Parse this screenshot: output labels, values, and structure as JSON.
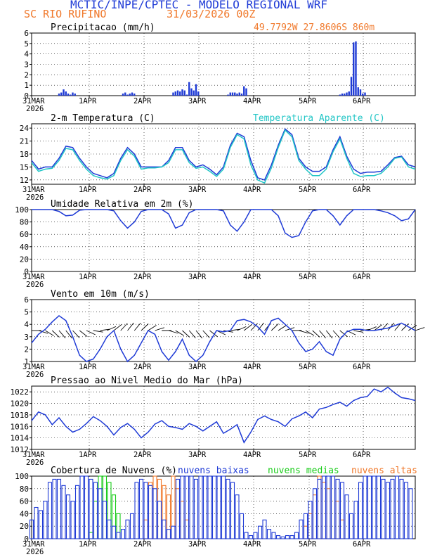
{
  "header": {
    "title": "MCTIC/INPE/CPTEC - MODELO REGIONAL WRF",
    "location": "SC RIO RUFINO",
    "run": "31/03/2026 00Z"
  },
  "colors": {
    "blue": "#1f3bd6",
    "cyan": "#22c6c6",
    "green": "#19cc19",
    "orange": "#f0782a",
    "black": "#000000"
  },
  "chart_data": [
    {
      "type": "bar",
      "title": "Precipitacao (mm/h)",
      "annotation": "49.7792W 27.8606S 860m",
      "x_tick_labels": [
        "31MAR",
        "1APR",
        "2APR",
        "3APR",
        "4APR",
        "5APR",
        "6APR"
      ],
      "x_year": "2026",
      "ylim": [
        0,
        6
      ],
      "yticks": [
        0,
        1,
        2,
        3,
        4,
        5,
        6
      ],
      "x_hours": [
        12,
        13,
        14,
        15,
        16,
        17,
        18,
        19,
        40,
        41,
        42,
        43,
        44,
        45,
        62,
        63,
        64,
        65,
        66,
        67,
        68,
        69,
        70,
        71,
        72,
        73,
        86,
        87,
        88,
        89,
        90,
        91,
        92,
        93,
        94,
        135,
        136,
        137,
        138,
        139,
        140,
        141,
        142,
        143,
        144,
        145,
        146
      ],
      "values": [
        0.2,
        0.3,
        0.6,
        0.4,
        0.2,
        0.1,
        0.3,
        0.2,
        0.2,
        0.3,
        0.1,
        0.2,
        0.3,
        0.2,
        0.3,
        0.4,
        0.5,
        0.4,
        0.6,
        0.5,
        0.1,
        1.3,
        0.7,
        0.5,
        1.1,
        0.4,
        0.1,
        0.3,
        0.3,
        0.3,
        0.2,
        0.3,
        0.2,
        0.9,
        0.7,
        0.1,
        0.2,
        0.2,
        0.3,
        0.4,
        1.8,
        5.1,
        5.2,
        0.8,
        0.6,
        0.2,
        0.3
      ]
    },
    {
      "type": "line",
      "title": "2-m Temperatura (C)",
      "series_label": "Temperatura Aparente (C)",
      "x_tick_labels": [
        "31MAR",
        "1APR",
        "2APR",
        "3APR",
        "4APR",
        "5APR",
        "6APR"
      ],
      "x_year": "2026",
      "ylim": [
        11,
        25
      ],
      "yticks": [
        12,
        15,
        18,
        21,
        24
      ],
      "x_hours": [
        0,
        3,
        6,
        9,
        12,
        15,
        18,
        21,
        24,
        27,
        30,
        33,
        36,
        39,
        42,
        45,
        48,
        51,
        54,
        57,
        60,
        63,
        66,
        69,
        72,
        75,
        78,
        81,
        84,
        87,
        90,
        93,
        96,
        99,
        102,
        105,
        108,
        111,
        114,
        117,
        120,
        123,
        126,
        129,
        132,
        135,
        138,
        141,
        144,
        147,
        150,
        153,
        156,
        159,
        162,
        165,
        168
      ],
      "series": [
        {
          "values": [
            16.5,
            14.5,
            15,
            15,
            17,
            19.8,
            19.5,
            17,
            15,
            13.5,
            13,
            12.5,
            13.5,
            17,
            19.5,
            18,
            15,
            15,
            15,
            15,
            16.5,
            19.5,
            19.5,
            16.5,
            15,
            15.5,
            14.5,
            13.2,
            15,
            20,
            22.8,
            22,
            16.5,
            12.5,
            12,
            15.5,
            20,
            23.8,
            22.5,
            17,
            15,
            14,
            14,
            15,
            19,
            22,
            17.5,
            14.5,
            13.5,
            13.8,
            13.8,
            14,
            15.5,
            17.2,
            17.5,
            15.5,
            15
          ]
        },
        {
          "values": [
            16,
            14,
            14.5,
            14.7,
            16.5,
            19.3,
            19,
            16.5,
            14.5,
            13,
            12.5,
            12.2,
            13,
            16.5,
            19,
            17.5,
            14.5,
            14.8,
            14.8,
            15,
            16,
            19,
            19,
            16,
            14.7,
            15,
            14,
            12.8,
            14.5,
            19.5,
            22.5,
            21.5,
            15.5,
            12,
            11.3,
            14.8,
            19.5,
            23.5,
            22,
            16.5,
            14.5,
            13,
            13,
            14.5,
            18.5,
            21.5,
            17,
            13.5,
            12.8,
            13,
            13,
            13.5,
            15,
            17,
            17.3,
            15,
            14.5
          ]
        }
      ]
    },
    {
      "type": "line",
      "title": "Umidade Relativa em 2m (%)",
      "x_tick_labels": [
        "31MAR",
        "1APR",
        "2APR",
        "3APR",
        "4APR",
        "5APR",
        "6APR"
      ],
      "x_year": "2026",
      "ylim": [
        0,
        100
      ],
      "yticks": [
        0,
        20,
        40,
        60,
        80,
        100
      ],
      "x_hours": [
        0,
        3,
        6,
        9,
        12,
        15,
        18,
        21,
        24,
        27,
        30,
        33,
        36,
        39,
        42,
        45,
        48,
        51,
        54,
        57,
        60,
        63,
        66,
        69,
        72,
        75,
        78,
        81,
        84,
        87,
        90,
        93,
        96,
        99,
        102,
        105,
        108,
        111,
        114,
        117,
        120,
        123,
        126,
        129,
        132,
        135,
        138,
        141,
        144,
        147,
        150,
        153,
        156,
        159,
        162,
        165,
        168
      ],
      "series": [
        {
          "values": [
            100,
            100,
            100,
            100,
            97,
            90,
            91,
            99,
            100,
            100,
            100,
            100,
            98,
            82,
            70,
            80,
            97,
            100,
            100,
            100,
            93,
            70,
            75,
            95,
            100,
            100,
            100,
            100,
            98,
            75,
            65,
            80,
            100,
            100,
            100,
            100,
            90,
            62,
            55,
            58,
            80,
            98,
            100,
            100,
            90,
            75,
            90,
            100,
            100,
            100,
            100,
            98,
            95,
            90,
            82,
            85,
            100
          ]
        }
      ]
    },
    {
      "type": "line",
      "title": "Vento em 10m (m/s)",
      "x_tick_labels": [
        "31MAR",
        "1APR",
        "2APR",
        "3APR",
        "4APR",
        "5APR",
        "6APR"
      ],
      "x_year": "2026",
      "ylim": [
        1,
        6
      ],
      "yticks": [
        1,
        2,
        3,
        4,
        5,
        6
      ],
      "x_hours": [
        0,
        3,
        6,
        9,
        12,
        15,
        18,
        21,
        24,
        27,
        30,
        33,
        36,
        39,
        42,
        45,
        48,
        51,
        54,
        57,
        60,
        63,
        66,
        69,
        72,
        75,
        78,
        81,
        84,
        87,
        90,
        93,
        96,
        99,
        102,
        105,
        108,
        111,
        114,
        117,
        120,
        123,
        126,
        129,
        132,
        135,
        138,
        141,
        144,
        147,
        150,
        153,
        156,
        159,
        162,
        165,
        168
      ],
      "series": [
        {
          "values": [
            2.5,
            3.2,
            3.6,
            4.2,
            4.7,
            4.3,
            3.0,
            1.5,
            1.0,
            1.2,
            2.0,
            3.0,
            3.5,
            2.0,
            1.0,
            1.5,
            2.5,
            3.5,
            3.2,
            1.8,
            1.1,
            1.8,
            2.8,
            1.5,
            1.0,
            1.5,
            2.6,
            3.5,
            3.4,
            3.5,
            4.3,
            4.4,
            4.2,
            3.8,
            3.2,
            4.3,
            4.5,
            4.0,
            3.5,
            2.5,
            1.8,
            2.0,
            2.6,
            1.8,
            1.5,
            2.8,
            3.4,
            3.6,
            3.6,
            3.5,
            3.5,
            3.6,
            3.7,
            3.9,
            4.1,
            3.8,
            3.5
          ]
        }
      ]
    },
    {
      "type": "line",
      "title": "Pressao ao Nivel Medio do Mar (hPa)",
      "x_tick_labels": [
        "31MAR",
        "1APR",
        "2APR",
        "3APR",
        "4APR",
        "5APR",
        "6APR"
      ],
      "x_year": "2026",
      "ylim": [
        1012,
        1023
      ],
      "yticks": [
        1012,
        1014,
        1016,
        1018,
        1020,
        1022
      ],
      "x_hours": [
        0,
        3,
        6,
        9,
        12,
        15,
        18,
        21,
        24,
        27,
        30,
        33,
        36,
        39,
        42,
        45,
        48,
        51,
        54,
        57,
        60,
        63,
        66,
        69,
        72,
        75,
        78,
        81,
        84,
        87,
        90,
        93,
        96,
        99,
        102,
        105,
        108,
        111,
        114,
        117,
        120,
        123,
        126,
        129,
        132,
        135,
        138,
        141,
        144,
        147,
        150,
        153,
        156,
        159,
        162,
        165,
        168
      ],
      "series": [
        {
          "values": [
            1017,
            1018.5,
            1018,
            1016.3,
            1017.5,
            1016,
            1015,
            1015.5,
            1016.5,
            1017.7,
            1017,
            1016,
            1014.5,
            1015.8,
            1016.5,
            1015.5,
            1014,
            1015,
            1016.4,
            1017,
            1016,
            1015.8,
            1015.5,
            1016.5,
            1016,
            1015.2,
            1016,
            1016.8,
            1014.8,
            1015.5,
            1016.3,
            1013.2,
            1015,
            1017.2,
            1017.8,
            1017.2,
            1016.8,
            1016,
            1017.3,
            1017.8,
            1018.5,
            1017.5,
            1019,
            1019.3,
            1019.8,
            1020.2,
            1019.5,
            1020.5,
            1021,
            1021.2,
            1022.5,
            1022,
            1022.8,
            1021.8,
            1021,
            1020.8,
            1020.5
          ]
        }
      ]
    },
    {
      "type": "bar",
      "title": "Cobertura de Nuvens (%)",
      "legend": [
        "nuvens baixas",
        "nuvens medias",
        "nuvens altas"
      ],
      "x_tick_labels": [
        "31MAR",
        "1APR",
        "2APR",
        "3APR",
        "4APR",
        "5APR",
        "6APR"
      ],
      "x_year": "2026",
      "ylim": [
        0,
        100
      ],
      "yticks": [
        0,
        20,
        40,
        60,
        80,
        100
      ],
      "x_hours": [
        0,
        2,
        4,
        6,
        8,
        10,
        12,
        14,
        16,
        18,
        20,
        22,
        24,
        26,
        28,
        30,
        32,
        34,
        36,
        38,
        40,
        42,
        44,
        46,
        48,
        50,
        52,
        54,
        56,
        58,
        60,
        62,
        64,
        66,
        68,
        70,
        72,
        74,
        76,
        78,
        80,
        82,
        84,
        86,
        88,
        90,
        92,
        94,
        96,
        98,
        100,
        102,
        104,
        106,
        108,
        110,
        112,
        114,
        116,
        118,
        120,
        122,
        124,
        126,
        128,
        130,
        132,
        134,
        136,
        138,
        140,
        142,
        144,
        146,
        148,
        150,
        152,
        154,
        156,
        158,
        160,
        162,
        164,
        166
      ],
      "series": [
        {
          "name": "nuvens baixas",
          "values": [
            30,
            50,
            45,
            60,
            90,
            95,
            95,
            85,
            70,
            60,
            85,
            100,
            100,
            95,
            90,
            80,
            60,
            30,
            20,
            10,
            15,
            30,
            40,
            90,
            95,
            90,
            85,
            80,
            60,
            30,
            15,
            20,
            95,
            100,
            100,
            100,
            95,
            100,
            100,
            100,
            100,
            100,
            100,
            95,
            90,
            70,
            40,
            10,
            5,
            10,
            20,
            30,
            15,
            10,
            5,
            3,
            5,
            5,
            10,
            30,
            40,
            60,
            80,
            95,
            100,
            100,
            100,
            95,
            90,
            70,
            40,
            60,
            90,
            100,
            100,
            100,
            100,
            95,
            90,
            95,
            100,
            95,
            90,
            80
          ]
        },
        {
          "name": "nuvens medias",
          "values": [
            0,
            0,
            0,
            0,
            0,
            0,
            0,
            0,
            0,
            0,
            0,
            0,
            0,
            10,
            60,
            100,
            100,
            90,
            70,
            40,
            0,
            0,
            0,
            0,
            0,
            0,
            0,
            0,
            0,
            0,
            0,
            0,
            0,
            0,
            0,
            0,
            0,
            0,
            0,
            0,
            0,
            0,
            0,
            0,
            0,
            0,
            0,
            0,
            0,
            0,
            0,
            0,
            0,
            0,
            0,
            0,
            0,
            0,
            0,
            0,
            0,
            0,
            0,
            0,
            0,
            0,
            0,
            0,
            0,
            0,
            0,
            0,
            0,
            0,
            0,
            0,
            0,
            0,
            0,
            0,
            0,
            0,
            0,
            0
          ]
        },
        {
          "name": "nuvens altas",
          "values": [
            0,
            0,
            0,
            0,
            0,
            0,
            0,
            0,
            0,
            0,
            0,
            0,
            0,
            0,
            0,
            0,
            0,
            0,
            0,
            0,
            0,
            0,
            0,
            0,
            0,
            30,
            90,
            100,
            95,
            85,
            70,
            100,
            80,
            60,
            30,
            0,
            0,
            0,
            0,
            0,
            0,
            0,
            0,
            0,
            0,
            0,
            0,
            0,
            0,
            0,
            0,
            0,
            0,
            0,
            0,
            0,
            0,
            0,
            0,
            0,
            20,
            40,
            70,
            100,
            90,
            80,
            100,
            60,
            30,
            0,
            0,
            0,
            0,
            0,
            0,
            0,
            0,
            0,
            0,
            0,
            0,
            0,
            0,
            0
          ]
        }
      ]
    }
  ]
}
